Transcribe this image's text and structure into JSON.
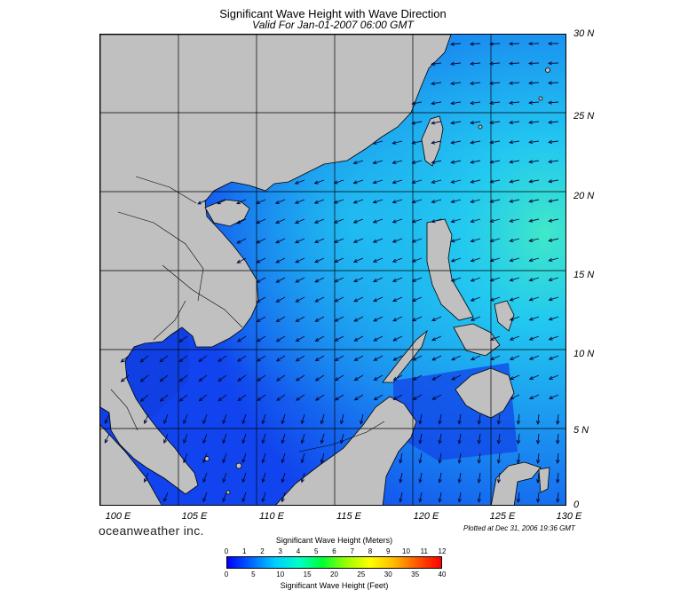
{
  "title": "Significant Wave Height with Wave Direction",
  "subtitle": "Valid For Jan-01-2007 06:00 GMT",
  "brand": "oceanweather inc.",
  "plotted": "Plotted at Dec 31, 2006 19:36 GMT",
  "lat_labels": [
    "30 N",
    "25 N",
    "20 N",
    "15 N",
    "10 N",
    "5 N",
    "0"
  ],
  "lon_labels": [
    "100 E",
    "105 E",
    "110 E",
    "115 E",
    "120 E",
    "125 E",
    "130 E"
  ],
  "colorbar": {
    "title_meters": "Significant Wave Height (Meters)",
    "title_feet": "Significant Wave Height (Feet)",
    "meters": [
      "0",
      "1",
      "2",
      "3",
      "4",
      "5",
      "6",
      "7",
      "8",
      "9",
      "10",
      "11",
      "12"
    ],
    "feet": [
      "0",
      "5",
      "10",
      "15",
      "20",
      "25",
      "30",
      "35",
      "40"
    ],
    "colors": [
      "#0000ff",
      "#0066ff",
      "#00ccff",
      "#00ffcc",
      "#00ff33",
      "#99ff00",
      "#ffff00",
      "#ffbb00",
      "#ff5500",
      "#ff0000"
    ]
  },
  "colors": {
    "land": "#c0c0c0",
    "sea_deep": "#1144ee",
    "sea_mid": "#1a8cf0",
    "sea_light": "#22c8f0",
    "sea_peak": "#40e8c8",
    "arrow": "#000a3a"
  }
}
